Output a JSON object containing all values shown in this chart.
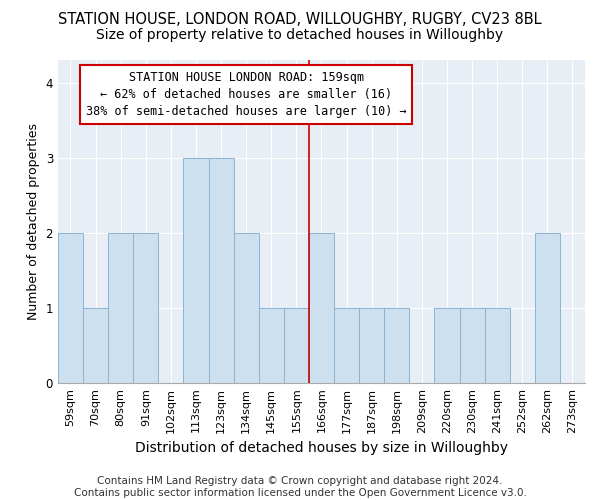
{
  "title": "STATION HOUSE, LONDON ROAD, WILLOUGHBY, RUGBY, CV23 8BL",
  "subtitle": "Size of property relative to detached houses in Willoughby",
  "xlabel": "Distribution of detached houses by size in Willoughby",
  "ylabel": "Number of detached properties",
  "categories": [
    "59sqm",
    "70sqm",
    "80sqm",
    "91sqm",
    "102sqm",
    "113sqm",
    "123sqm",
    "134sqm",
    "145sqm",
    "155sqm",
    "166sqm",
    "177sqm",
    "187sqm",
    "198sqm",
    "209sqm",
    "220sqm",
    "230sqm",
    "241sqm",
    "252sqm",
    "262sqm",
    "273sqm"
  ],
  "values": [
    2,
    1,
    2,
    2,
    0,
    3,
    3,
    2,
    1,
    1,
    2,
    1,
    1,
    1,
    0,
    1,
    1,
    1,
    0,
    2,
    0
  ],
  "bar_color": "#cde0f0",
  "bar_edgecolor": "#8ab4d4",
  "annotation_text": "STATION HOUSE LONDON ROAD: 159sqm\n← 62% of detached houses are smaller (16)\n38% of semi-detached houses are larger (10) →",
  "annotation_box_edgecolor": "#cc0000",
  "vline_color": "#cc0000",
  "vline_position": 9.5,
  "ylim": [
    0,
    4.3
  ],
  "yticks": [
    0,
    1,
    2,
    3,
    4
  ],
  "footer": "Contains HM Land Registry data © Crown copyright and database right 2024.\nContains public sector information licensed under the Open Government Licence v3.0.",
  "bg_color": "#ffffff",
  "plot_bg_color": "#e8eef5",
  "grid_color": "#ffffff",
  "title_fontsize": 10.5,
  "subtitle_fontsize": 10,
  "xlabel_fontsize": 10,
  "ylabel_fontsize": 9,
  "tick_fontsize": 8,
  "annotation_fontsize": 8.5,
  "footer_fontsize": 7.5
}
